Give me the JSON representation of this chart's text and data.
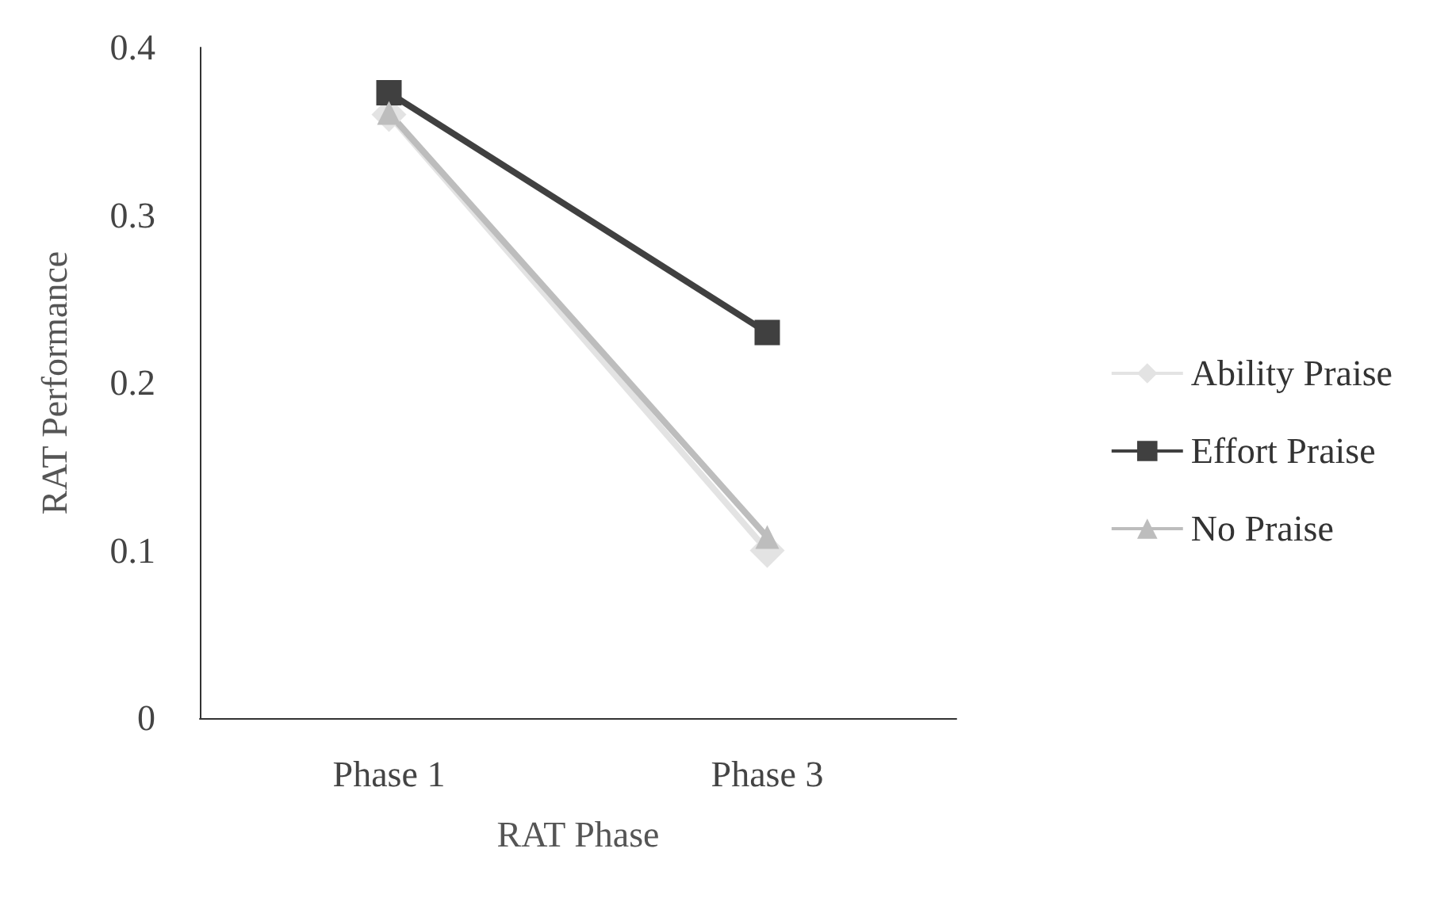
{
  "chart_data": {
    "type": "line",
    "xlabel": "RAT Phase",
    "ylabel": "RAT Performance",
    "categories": [
      "Phase 1",
      "Phase 3"
    ],
    "series": [
      {
        "name": "Ability Praise",
        "color": "#e3e3e3",
        "marker": "diamond",
        "values": [
          0.36,
          0.1
        ]
      },
      {
        "name": "Effort Praise",
        "color": "#404040",
        "marker": "square",
        "values": [
          0.373,
          0.23
        ]
      },
      {
        "name": "No Praise",
        "color": "#bdbdbd",
        "marker": "triangle",
        "values": [
          0.361,
          0.108
        ]
      }
    ],
    "ylim": [
      0,
      0.4
    ],
    "yticks": [
      0,
      0.1,
      0.2,
      0.3,
      0.4
    ],
    "grid": false,
    "legend": "right"
  }
}
